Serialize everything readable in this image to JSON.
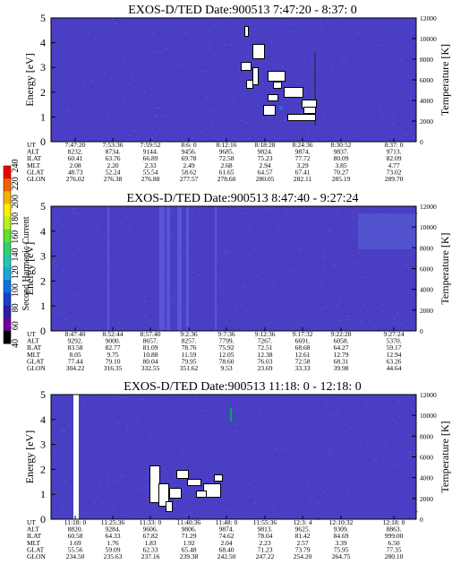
{
  "colorbar": {
    "label": "Second Harmonic Current",
    "ticks": [
      "40",
      "60",
      "80",
      "100",
      "120",
      "140",
      "160",
      "180",
      "200",
      "220",
      "240"
    ],
    "colors": [
      "#000000",
      "#6f009c",
      "#2a1ca8",
      "#1a3fd0",
      "#0a72e0",
      "#1aa8d8",
      "#22c8b0",
      "#30d070",
      "#60e030",
      "#b8f020",
      "#f8f000",
      "#f8b000",
      "#f86000",
      "#f00000"
    ]
  },
  "row_labels": [
    "UT",
    "ALT",
    "ILAT",
    "MLT",
    "GLAT",
    "GLON"
  ],
  "colors": {
    "background": "#4a3fc4",
    "noise": "#3a36b8",
    "streak": "#5f5ae0",
    "gap": "#ffffff",
    "edge": "#000000",
    "green": "#00a85a"
  },
  "chart_data": [
    {
      "type": "heatmap",
      "title": "EXOS-D/TED  Date:900513  7:47:20 - 8:37: 0",
      "ylabel": "Energy [eV]",
      "y2label": "Temperature [K]",
      "yticks": [
        "0",
        "1",
        "2",
        "3",
        "4",
        "5"
      ],
      "y2ticks": [
        "0",
        "2000",
        "4000",
        "6000",
        "8000",
        "10000",
        "12000"
      ],
      "ylim": [
        0,
        5
      ],
      "y2lim": [
        0,
        12000
      ],
      "columns": [
        [
          "7:47:20",
          "8232.",
          "60.41",
          "2.08",
          "48.73",
          "276.02"
        ],
        [
          "7:53:36",
          "8734.",
          "63.76",
          "2.20",
          "52.24",
          "276.38"
        ],
        [
          "7:59:52",
          "9144.",
          "66.89",
          "2.33",
          "55.54",
          "276.88"
        ],
        [
          "8:6: 0",
          "9456.",
          "69.78",
          "2.49",
          "58.62",
          "277.57"
        ],
        [
          "8:12:16",
          "9685.",
          "72.58",
          "2.68",
          "61.65",
          "278.60"
        ],
        [
          "8:18:28",
          "9824.",
          "75.23",
          "2.94",
          "64.57",
          "280.05"
        ],
        [
          "8:24:36",
          "9874.",
          "77.72",
          "3.29",
          "67.41",
          "282.11"
        ],
        [
          "8:30:52",
          "9837.",
          "80.09",
          "3.85",
          "70.27",
          "285.19"
        ],
        [
          "8:37: 0",
          "9713.",
          "82.09",
          "4.77",
          "73.02",
          "289.70"
        ]
      ]
    },
    {
      "type": "heatmap",
      "title": "EXOS-D/TED  Date:900513  8:47:40 - 9:27:24",
      "ylabel": "Energy [eV]",
      "y2label": "Temperature [K]",
      "yticks": [
        "0",
        "1",
        "2",
        "3",
        "4",
        "5"
      ],
      "y2ticks": [
        "0",
        "2000",
        "4000",
        "6000",
        "8000",
        "10000",
        "12000"
      ],
      "ylim": [
        0,
        5
      ],
      "y2lim": [
        0,
        12000
      ],
      "columns": [
        [
          "8:47:40",
          "9292.",
          "83.58",
          "8.05",
          "77.44",
          "304.22"
        ],
        [
          "8:52:44",
          "9000.",
          "82.77",
          "9.75",
          "79.10",
          "316.35"
        ],
        [
          "8:57:40",
          "8657.",
          "81.09",
          "10.88",
          "80.04",
          "332.55"
        ],
        [
          "9:2:36",
          "8257.",
          "78.76",
          "11.59",
          "79.95",
          "351.62"
        ],
        [
          "9:7:36",
          "7799.",
          "75.92",
          "12.05",
          "78.60",
          "9.53"
        ],
        [
          "9:12:36",
          "7267.",
          "72.51",
          "12.38",
          "76.03",
          "23.69"
        ],
        [
          "9:17:32",
          "6691.",
          "68.68",
          "12.61",
          "72.58",
          "33.33"
        ],
        [
          "9:22:28",
          "6058.",
          "64.27",
          "12.79",
          "68.31",
          "39.98"
        ],
        [
          "9:27:24",
          "5370.",
          "59.17",
          "12.94",
          "63.26",
          "44.64"
        ]
      ]
    },
    {
      "type": "heatmap",
      "title": "EXOS-D/TED  Date:900513  11:18: 0 - 12:18: 0",
      "ylabel": "Energy [eV]",
      "y2label": "Temperature [K]",
      "yticks": [
        "0",
        "1",
        "2",
        "3",
        "4",
        "5"
      ],
      "y2ticks": [
        "0",
        "2000",
        "4000",
        "6000",
        "8000",
        "10000",
        "12000"
      ],
      "ylim": [
        0,
        5
      ],
      "y2lim": [
        0,
        12000
      ],
      "columns": [
        [
          "11:18: 0",
          "8820.",
          "60.58",
          "1.69",
          "55.56",
          "234.50"
        ],
        [
          "11:25:36",
          "9284.",
          "64.33",
          "1.76",
          "59.09",
          "235.63"
        ],
        [
          "11:33: 0",
          "9606.",
          "67.82",
          "1.83",
          "62.33",
          "237.16"
        ],
        [
          "11:40:36",
          "9806.",
          "71.29",
          "1.92",
          "65.48",
          "239.38"
        ],
        [
          "11:48: 0",
          "9874.",
          "74.62",
          "2.04",
          "68.40",
          "242.50"
        ],
        [
          "11:55:36",
          "9813.",
          "78.04",
          "2.23",
          "71.23",
          "247.22"
        ],
        [
          "12:3: 4",
          "9625.",
          "81.42",
          "2.57",
          "73.79",
          "254.20"
        ],
        [
          "12:10:32",
          "9309.",
          "84.69",
          "3.39",
          "75.95",
          "264.75"
        ],
        [
          "12:18: 0",
          "8863.",
          "999.00",
          "6.50",
          "77.35",
          "280.10"
        ]
      ]
    }
  ]
}
